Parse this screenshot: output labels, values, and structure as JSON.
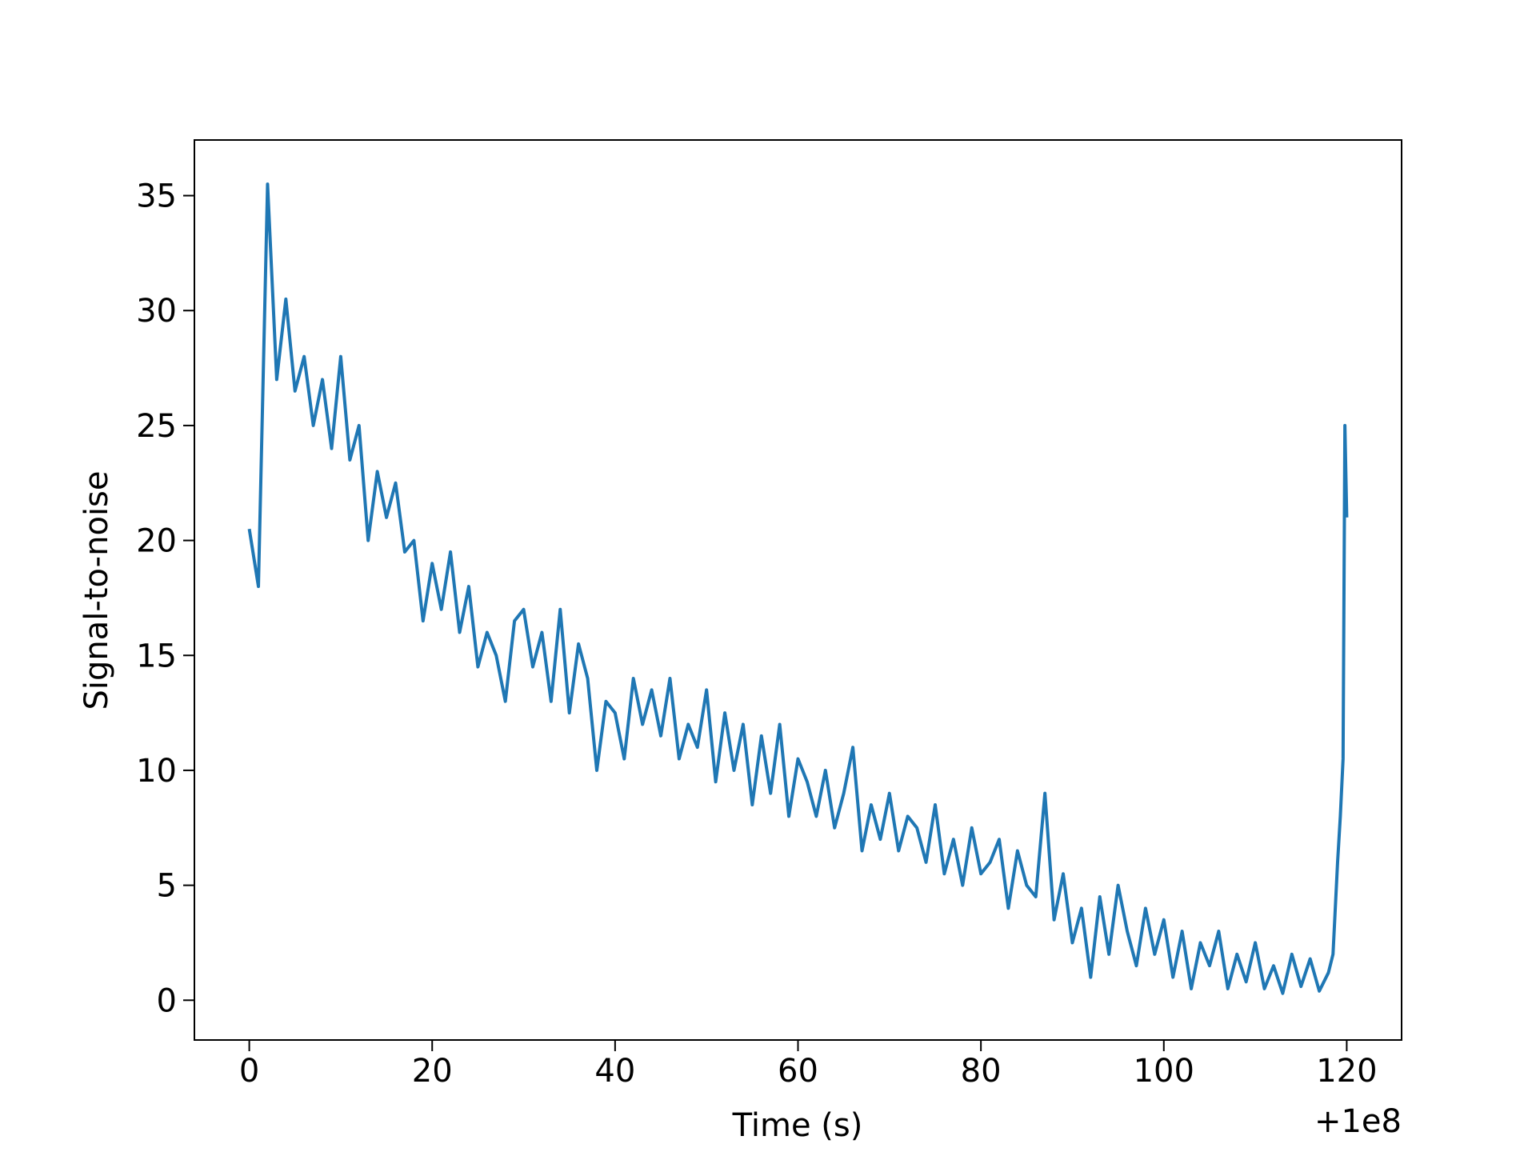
{
  "chart_data": {
    "type": "line",
    "x_label": "Time (s)",
    "y_label": "Signal-to-noise",
    "x_offset_label": "+1e8",
    "x": [
      0,
      1,
      2,
      3,
      4,
      5,
      6,
      7,
      8,
      9,
      10,
      11,
      12,
      13,
      14,
      15,
      16,
      17,
      18,
      19,
      20,
      21,
      22,
      23,
      24,
      25,
      26,
      27,
      28,
      29,
      30,
      31,
      32,
      33,
      34,
      35,
      36,
      37,
      38,
      39,
      40,
      41,
      42,
      43,
      44,
      45,
      46,
      47,
      48,
      49,
      50,
      51,
      52,
      53,
      54,
      55,
      56,
      57,
      58,
      59,
      60,
      61,
      62,
      63,
      64,
      65,
      66,
      67,
      68,
      69,
      70,
      71,
      72,
      73,
      74,
      75,
      76,
      77,
      78,
      79,
      80,
      81,
      82,
      83,
      84,
      85,
      86,
      87,
      88,
      89,
      90,
      91,
      92,
      93,
      94,
      95,
      96,
      97,
      98,
      99,
      100,
      101,
      102,
      103,
      104,
      105,
      106,
      107,
      108,
      109,
      110,
      111,
      112,
      113,
      114,
      115,
      116,
      117,
      118,
      118.5,
      119,
      119.3,
      119.6,
      119.8,
      120
    ],
    "series": [
      {
        "color": "#1f77b4",
        "values": [
          20.5,
          18,
          35.5,
          27,
          30.5,
          26.5,
          28,
          25,
          27,
          24,
          28,
          23.5,
          25,
          20,
          23,
          21,
          22.5,
          19.5,
          20,
          16.5,
          19,
          17,
          19.5,
          16,
          18,
          14.5,
          16,
          15,
          13,
          16.5,
          17,
          14.5,
          16,
          13,
          17,
          12.5,
          15.5,
          14,
          10,
          13,
          12.5,
          10.5,
          14,
          12,
          13.5,
          11.5,
          14,
          10.5,
          12,
          11,
          13.5,
          9.5,
          12.5,
          10,
          12,
          8.5,
          11.5,
          9,
          12,
          8,
          10.5,
          9.5,
          8,
          10,
          7.5,
          9,
          11,
          6.5,
          8.5,
          7,
          9,
          6.5,
          8,
          7.5,
          6,
          8.5,
          5.5,
          7,
          5,
          7.5,
          5.5,
          6,
          7,
          4,
          6.5,
          5,
          4.5,
          9,
          3.5,
          5.5,
          2.5,
          4,
          1,
          4.5,
          2,
          5,
          3,
          1.5,
          4,
          2,
          3.5,
          1,
          3,
          0.5,
          2.5,
          1.5,
          3,
          0.5,
          2,
          0.8,
          2.5,
          0.5,
          1.5,
          0.3,
          2,
          0.6,
          1.8,
          0.4,
          1.2,
          2,
          6,
          8,
          10.5,
          25,
          21
        ]
      }
    ],
    "xlim": [
      -6,
      126
    ],
    "ylim": [
      -1.73,
      37.42
    ],
    "xticks": [
      0,
      20,
      40,
      60,
      80,
      100,
      120
    ],
    "yticks": [
      0,
      5,
      10,
      15,
      20,
      25,
      30,
      35
    ]
  }
}
